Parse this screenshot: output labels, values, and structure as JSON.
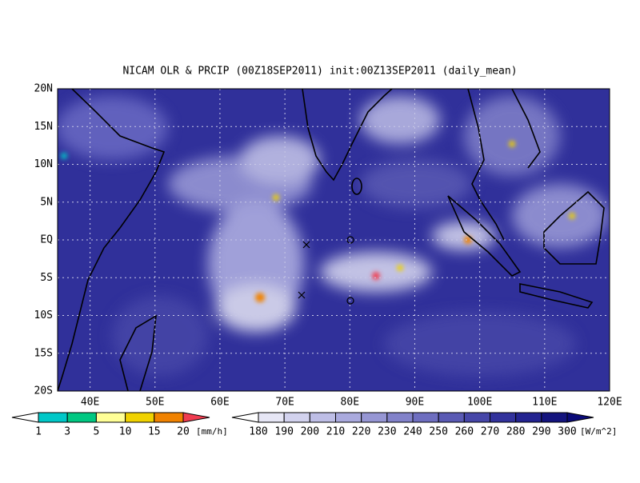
{
  "title": "NICAM OLR & PRCIP (00Z18SEP2011) init:00Z13SEP2011 (daily_mean)",
  "map": {
    "lat_labels": [
      "20N",
      "15N",
      "10N",
      "5N",
      "EQ",
      "5S",
      "10S",
      "15S",
      "20S"
    ],
    "lon_labels": [
      "40E",
      "50E",
      "60E",
      "70E",
      "80E",
      "90E",
      "100E",
      "110E",
      "120E"
    ]
  },
  "legends": [
    {
      "labels": [
        1,
        3,
        5,
        10,
        15,
        20
      ],
      "unit": "[mm/h]",
      "colors": [
        "#ffffff",
        "#00c8c8",
        "#00c882",
        "#ffff96",
        "#f0d200",
        "#f08200",
        "#f03c50"
      ]
    },
    {
      "labels": [
        180,
        190,
        200,
        210,
        220,
        230,
        240,
        250,
        260,
        270,
        280,
        290,
        300
      ],
      "unit": "[W/m^2]",
      "colors": [
        "#ffffff",
        "#e6e6f5",
        "#d2d2ee",
        "#bebee6",
        "#aaaade",
        "#9696d4",
        "#8282ca",
        "#6e6ec0",
        "#5a5ab4",
        "#4646a8",
        "#32329c",
        "#232390",
        "#14147e",
        "#0a0a78"
      ]
    }
  ]
}
